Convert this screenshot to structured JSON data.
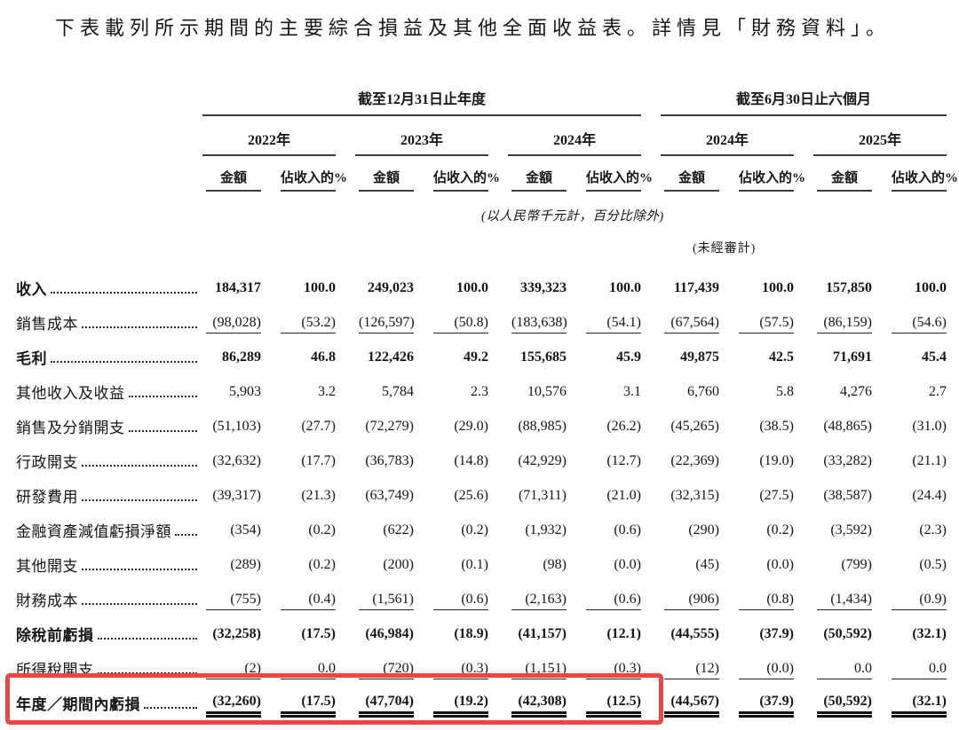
{
  "title": "下表載列所示期間的主要綜合損益及其他全面收益表。詳情見「財務資料」。",
  "table": {
    "period_groups": [
      {
        "label": "截至12月31日止年度",
        "years": [
          "2022年",
          "2023年",
          "2024年"
        ]
      },
      {
        "label": "截至6月30日止六個月",
        "years": [
          "2024年",
          "2025年"
        ]
      }
    ],
    "sub_headers": {
      "amount": "金額",
      "percent": "佔收入的%"
    },
    "unit_note": "(以人民幣千元計，百分比除外)",
    "unaudited_note": "(未經審計)",
    "highlight_color": "#ee4545",
    "rows": [
      {
        "label": "收入",
        "bold": true,
        "values": [
          "184,317",
          "100.0",
          "249,023",
          "100.0",
          "339,323",
          "100.0",
          "117,439",
          "100.0",
          "157,850",
          "100.0"
        ]
      },
      {
        "label": "銷售成本",
        "underline_after": true,
        "values": [
          "(98,028)",
          "(53.2)",
          "(126,597)",
          "(50.8)",
          "(183,638)",
          "(54.1)",
          "(67,564)",
          "(57.5)",
          "(86,159)",
          "(54.6)"
        ]
      },
      {
        "label": "毛利",
        "bold": true,
        "values": [
          "86,289",
          "46.8",
          "122,426",
          "49.2",
          "155,685",
          "45.9",
          "49,875",
          "42.5",
          "71,691",
          "45.4"
        ]
      },
      {
        "label": "其他收入及收益",
        "values": [
          "5,903",
          "3.2",
          "5,784",
          "2.3",
          "10,576",
          "3.1",
          "6,760",
          "5.8",
          "4,276",
          "2.7"
        ]
      },
      {
        "label": "銷售及分銷開支",
        "values": [
          "(51,103)",
          "(27.7)",
          "(72,279)",
          "(29.0)",
          "(88,985)",
          "(26.2)",
          "(45,265)",
          "(38.5)",
          "(48,865)",
          "(31.0)"
        ]
      },
      {
        "label": "行政開支",
        "values": [
          "(32,632)",
          "(17.7)",
          "(36,783)",
          "(14.8)",
          "(42,929)",
          "(12.7)",
          "(22,369)",
          "(19.0)",
          "(33,282)",
          "(21.1)"
        ]
      },
      {
        "label": "研發費用",
        "values": [
          "(39,317)",
          "(21.3)",
          "(63,749)",
          "(25.6)",
          "(71,311)",
          "(21.0)",
          "(32,315)",
          "(27.5)",
          "(38,587)",
          "(24.4)"
        ]
      },
      {
        "label": "金融資產減值虧損淨額",
        "values": [
          "(354)",
          "(0.2)",
          "(622)",
          "(0.2)",
          "(1,932)",
          "(0.6)",
          "(290)",
          "(0.2)",
          "(3,592)",
          "(2.3)"
        ]
      },
      {
        "label": "其他開支",
        "values": [
          "(289)",
          "(0.2)",
          "(200)",
          "(0.1)",
          "(98)",
          "(0.0)",
          "(45)",
          "(0.0)",
          "(799)",
          "(0.5)"
        ]
      },
      {
        "label": "財務成本",
        "underline_after": true,
        "values": [
          "(755)",
          "(0.4)",
          "(1,561)",
          "(0.6)",
          "(2,163)",
          "(0.6)",
          "(906)",
          "(0.8)",
          "(1,434)",
          "(0.9)"
        ]
      },
      {
        "label": "除稅前虧損",
        "bold": true,
        "values": [
          "(32,258)",
          "(17.5)",
          "(46,984)",
          "(18.9)",
          "(41,157)",
          "(12.1)",
          "(44,555)",
          "(37.9)",
          "(50,592)",
          "(32.1)"
        ]
      },
      {
        "label": "所得稅開支",
        "underline_after": true,
        "values": [
          "(2)",
          "0.0",
          "(720)",
          "(0.3)",
          "(1,151)",
          "(0.3)",
          "(12)",
          "(0.0)",
          "0.0",
          "0.0"
        ]
      },
      {
        "label": "年度／期間內虧損",
        "bold": true,
        "double_underline": true,
        "highlighted": true,
        "values": [
          "(32,260)",
          "(17.5)",
          "(47,704)",
          "(19.2)",
          "(42,308)",
          "(12.5)",
          "(44,567)",
          "(37.9)",
          "(50,592)",
          "(32.1)"
        ]
      }
    ]
  }
}
